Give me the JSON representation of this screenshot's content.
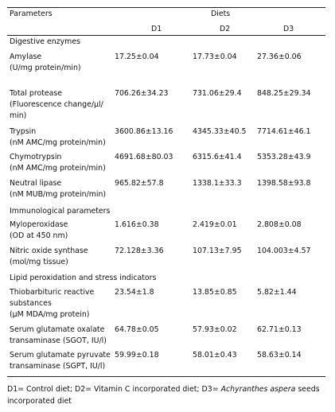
{
  "table": {
    "header": {
      "parameters": "Parameters",
      "diets": "Diets",
      "columns": [
        "D1",
        "D2",
        "D3"
      ]
    },
    "sections": {
      "digestive": "Digestive enzymes",
      "immuno": "Immunological parameters",
      "lipid": "Lipid peroxidation and stress indicators"
    },
    "rows": [
      {
        "label": "Amylase\n(U/mg protein/min)",
        "d1": "17.25±0.04",
        "d2": "17.73±0.04",
        "d3": "27.36±0.06"
      },
      {
        "label": "Total protease\n(Fluorescence change/µl/\nmin)",
        "d1": "706.26±34.23",
        "d2": "731.06±29.4",
        "d3": "848.25±29.34"
      },
      {
        "label": "Trypsin\n(nM AMC/mg protein/min)",
        "d1": "3600.86±13.16",
        "d2": "4345.33±40.5",
        "d3": "7714.61±46.1"
      },
      {
        "label": "Chymotrypsin\n(nM AMC/mg protein/min)",
        "d1": "4691.68±80.03",
        "d2": "6315.6±41.4",
        "d3": "5353.28±43.9"
      },
      {
        "label": "Neutral lipase\n(nM MUB/mg protein/min)",
        "d1": "965.82±57.8",
        "d2": "1338.1±33.3",
        "d3": "1398.58±93.8"
      },
      {
        "label": "Myloperoxidase\n(OD at 450 nm)",
        "d1": "1.616±0.38",
        "d2": "2.419±0.01",
        "d3": "2.808±0.08"
      },
      {
        "label": "Nitric oxide synthase\n(mol/mg tissue)",
        "d1": "72.128±3.36",
        "d2": "107.13±7.95",
        "d3": "104.003±4.57"
      },
      {
        "label": "Thiobarbituric reactive\nsubstances\n(µM MDA/mg protein)",
        "d1": "23.54±1.8",
        "d2": "13.85±0.85",
        "d3": "5.82±1.44"
      },
      {
        "label": "Serum glutamate oxalate\ntransaminase (SGOT, IU/l)",
        "d1": "64.78±0.05",
        "d2": "57.93±0.02",
        "d3": "62.71±0.13"
      },
      {
        "label": "Serum glutamate pyruvate\ntransaminase (SGPT, IU/l)",
        "d1": "59.99±0.18",
        "d2": "58.01±0.43",
        "d3": "58.63±0.14"
      }
    ]
  },
  "footnote": {
    "part1": "D1= Control diet; D2= Vitamin C incorporated diet; D3= ",
    "italic": "Achyranthes aspera",
    "part2": " seeds incorporated diet"
  }
}
